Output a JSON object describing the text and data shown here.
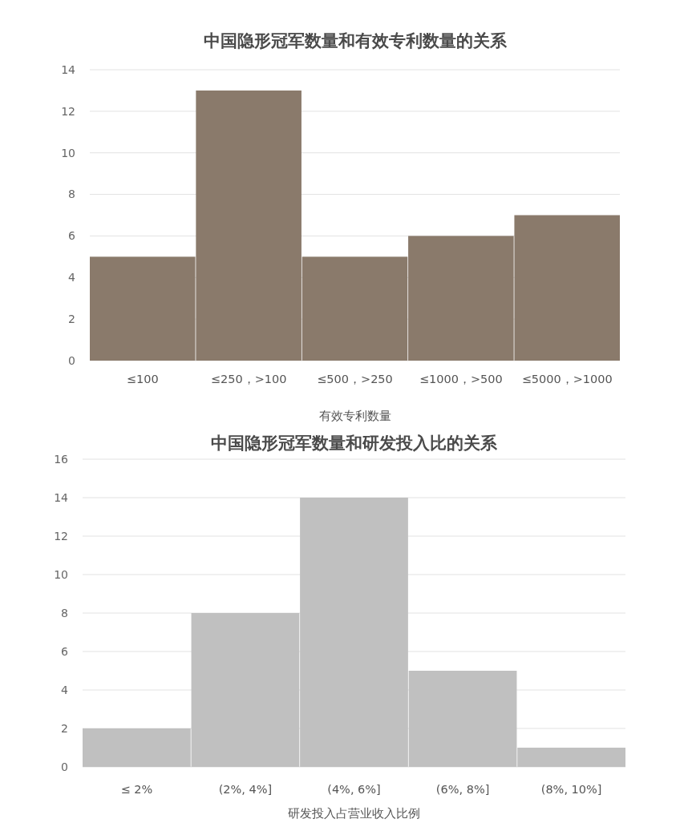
{
  "chart_data": [
    {
      "type": "bar",
      "title": "中国隐形冠军数量和有效专利数量的关系",
      "xlabel": "有效专利数量",
      "categories": [
        "≤100",
        "≤250，>100",
        "≤500，>250",
        "≤1000，>500",
        "≤5000，>1000"
      ],
      "values": [
        5,
        13,
        5,
        6,
        7
      ],
      "color": "#8a7a6b",
      "ylim": [
        0,
        14
      ],
      "yticks": [
        0,
        2,
        4,
        6,
        8,
        10,
        12,
        14
      ],
      "grid": "y"
    },
    {
      "type": "bar",
      "title": "中国隐形冠军数量和研发投入比的关系",
      "xlabel": "研发投入占营业收入比例",
      "categories": [
        "≤ 2%",
        "(2%, 4%]",
        "(4%, 6%]",
        "(6%, 8%]",
        "(8%, 10%]"
      ],
      "values": [
        2,
        8,
        14,
        5,
        1
      ],
      "color": "#c0c0c0",
      "ylim": [
        0,
        16
      ],
      "yticks": [
        0,
        2,
        4,
        6,
        8,
        10,
        12,
        14,
        16
      ],
      "grid": "y"
    }
  ]
}
